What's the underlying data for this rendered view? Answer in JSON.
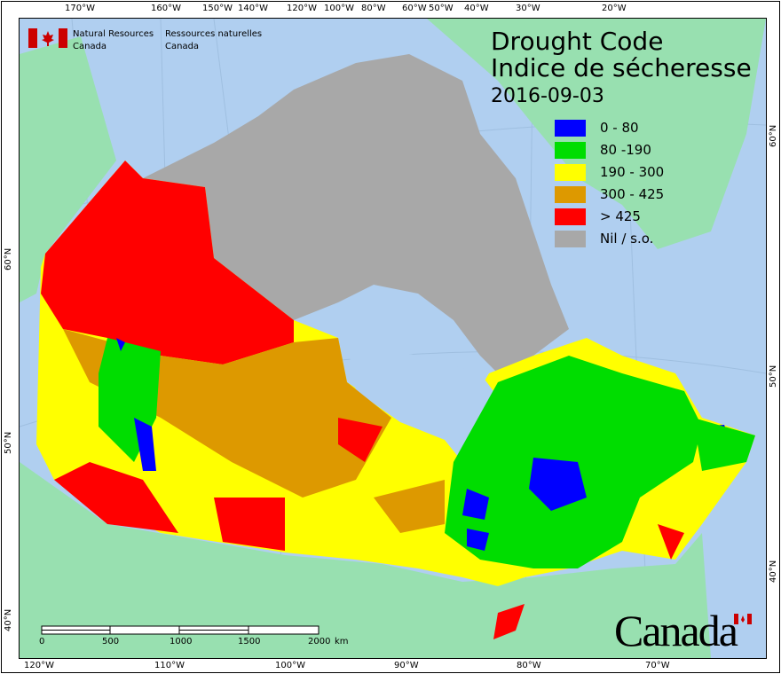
{
  "title_en": "Drought Code",
  "title_fr": "Indice de sécheresse",
  "date": "2016-09-03",
  "agency": {
    "en_line1": "Natural Resources",
    "en_line2": "Canada",
    "fr_line1": "Ressources naturelles",
    "fr_line2": "Canada"
  },
  "legend": [
    {
      "label": "0 - 80",
      "color": "#0000ff"
    },
    {
      "label": "80 -190",
      "color": "#00dd00"
    },
    {
      "label": "190 - 300",
      "color": "#ffff00"
    },
    {
      "label": "300 - 425",
      "color": "#dd9900"
    },
    {
      "label": "> 425",
      "color": "#ff0000"
    },
    {
      "label": "Nil / s.o.",
      "color": "#a8a8a8"
    }
  ],
  "top_longitudes": [
    "170°W",
    "160°W",
    "150°W",
    "140°W",
    "120°W",
    "100°W",
    "80°W",
    "60°W",
    "50°W",
    "40°W",
    "30°W",
    "20°W"
  ],
  "bottom_longitudes": [
    "120°W",
    "110°W",
    "100°W",
    "90°W",
    "80°W",
    "70°W"
  ],
  "left_latitudes": [
    "60°N",
    "50°N",
    "40°N"
  ],
  "right_latitudes": [
    "60°N",
    "50°N",
    "40°N"
  ],
  "scale_bar": {
    "ticks": [
      "0",
      "500",
      "1000",
      "1500",
      "2000"
    ],
    "unit": "km"
  },
  "wordmark": "Canada",
  "colors": {
    "water": "#b0cff0",
    "foreign_land": "#98e0b0"
  }
}
